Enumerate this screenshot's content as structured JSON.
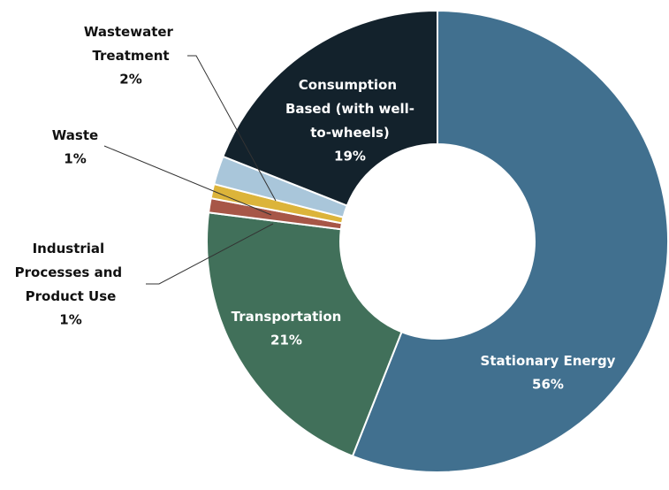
{
  "chart_data": {
    "type": "donut",
    "categories": [
      "Stationary Energy",
      "Transportation",
      "Industrial Processes and Product Use",
      "Waste",
      "Wastewater Treatment",
      "Consumption Based (with well-to-wheels)"
    ],
    "values": [
      56,
      21,
      1,
      1,
      2,
      19
    ],
    "value_labels": [
      "56%",
      "21%",
      "1%",
      "1%",
      "2%",
      "19%"
    ],
    "colors": [
      "#41708f",
      "#41705a",
      "#a75647",
      "#dcb43a",
      "#a9c6da",
      "#13222c"
    ]
  }
}
